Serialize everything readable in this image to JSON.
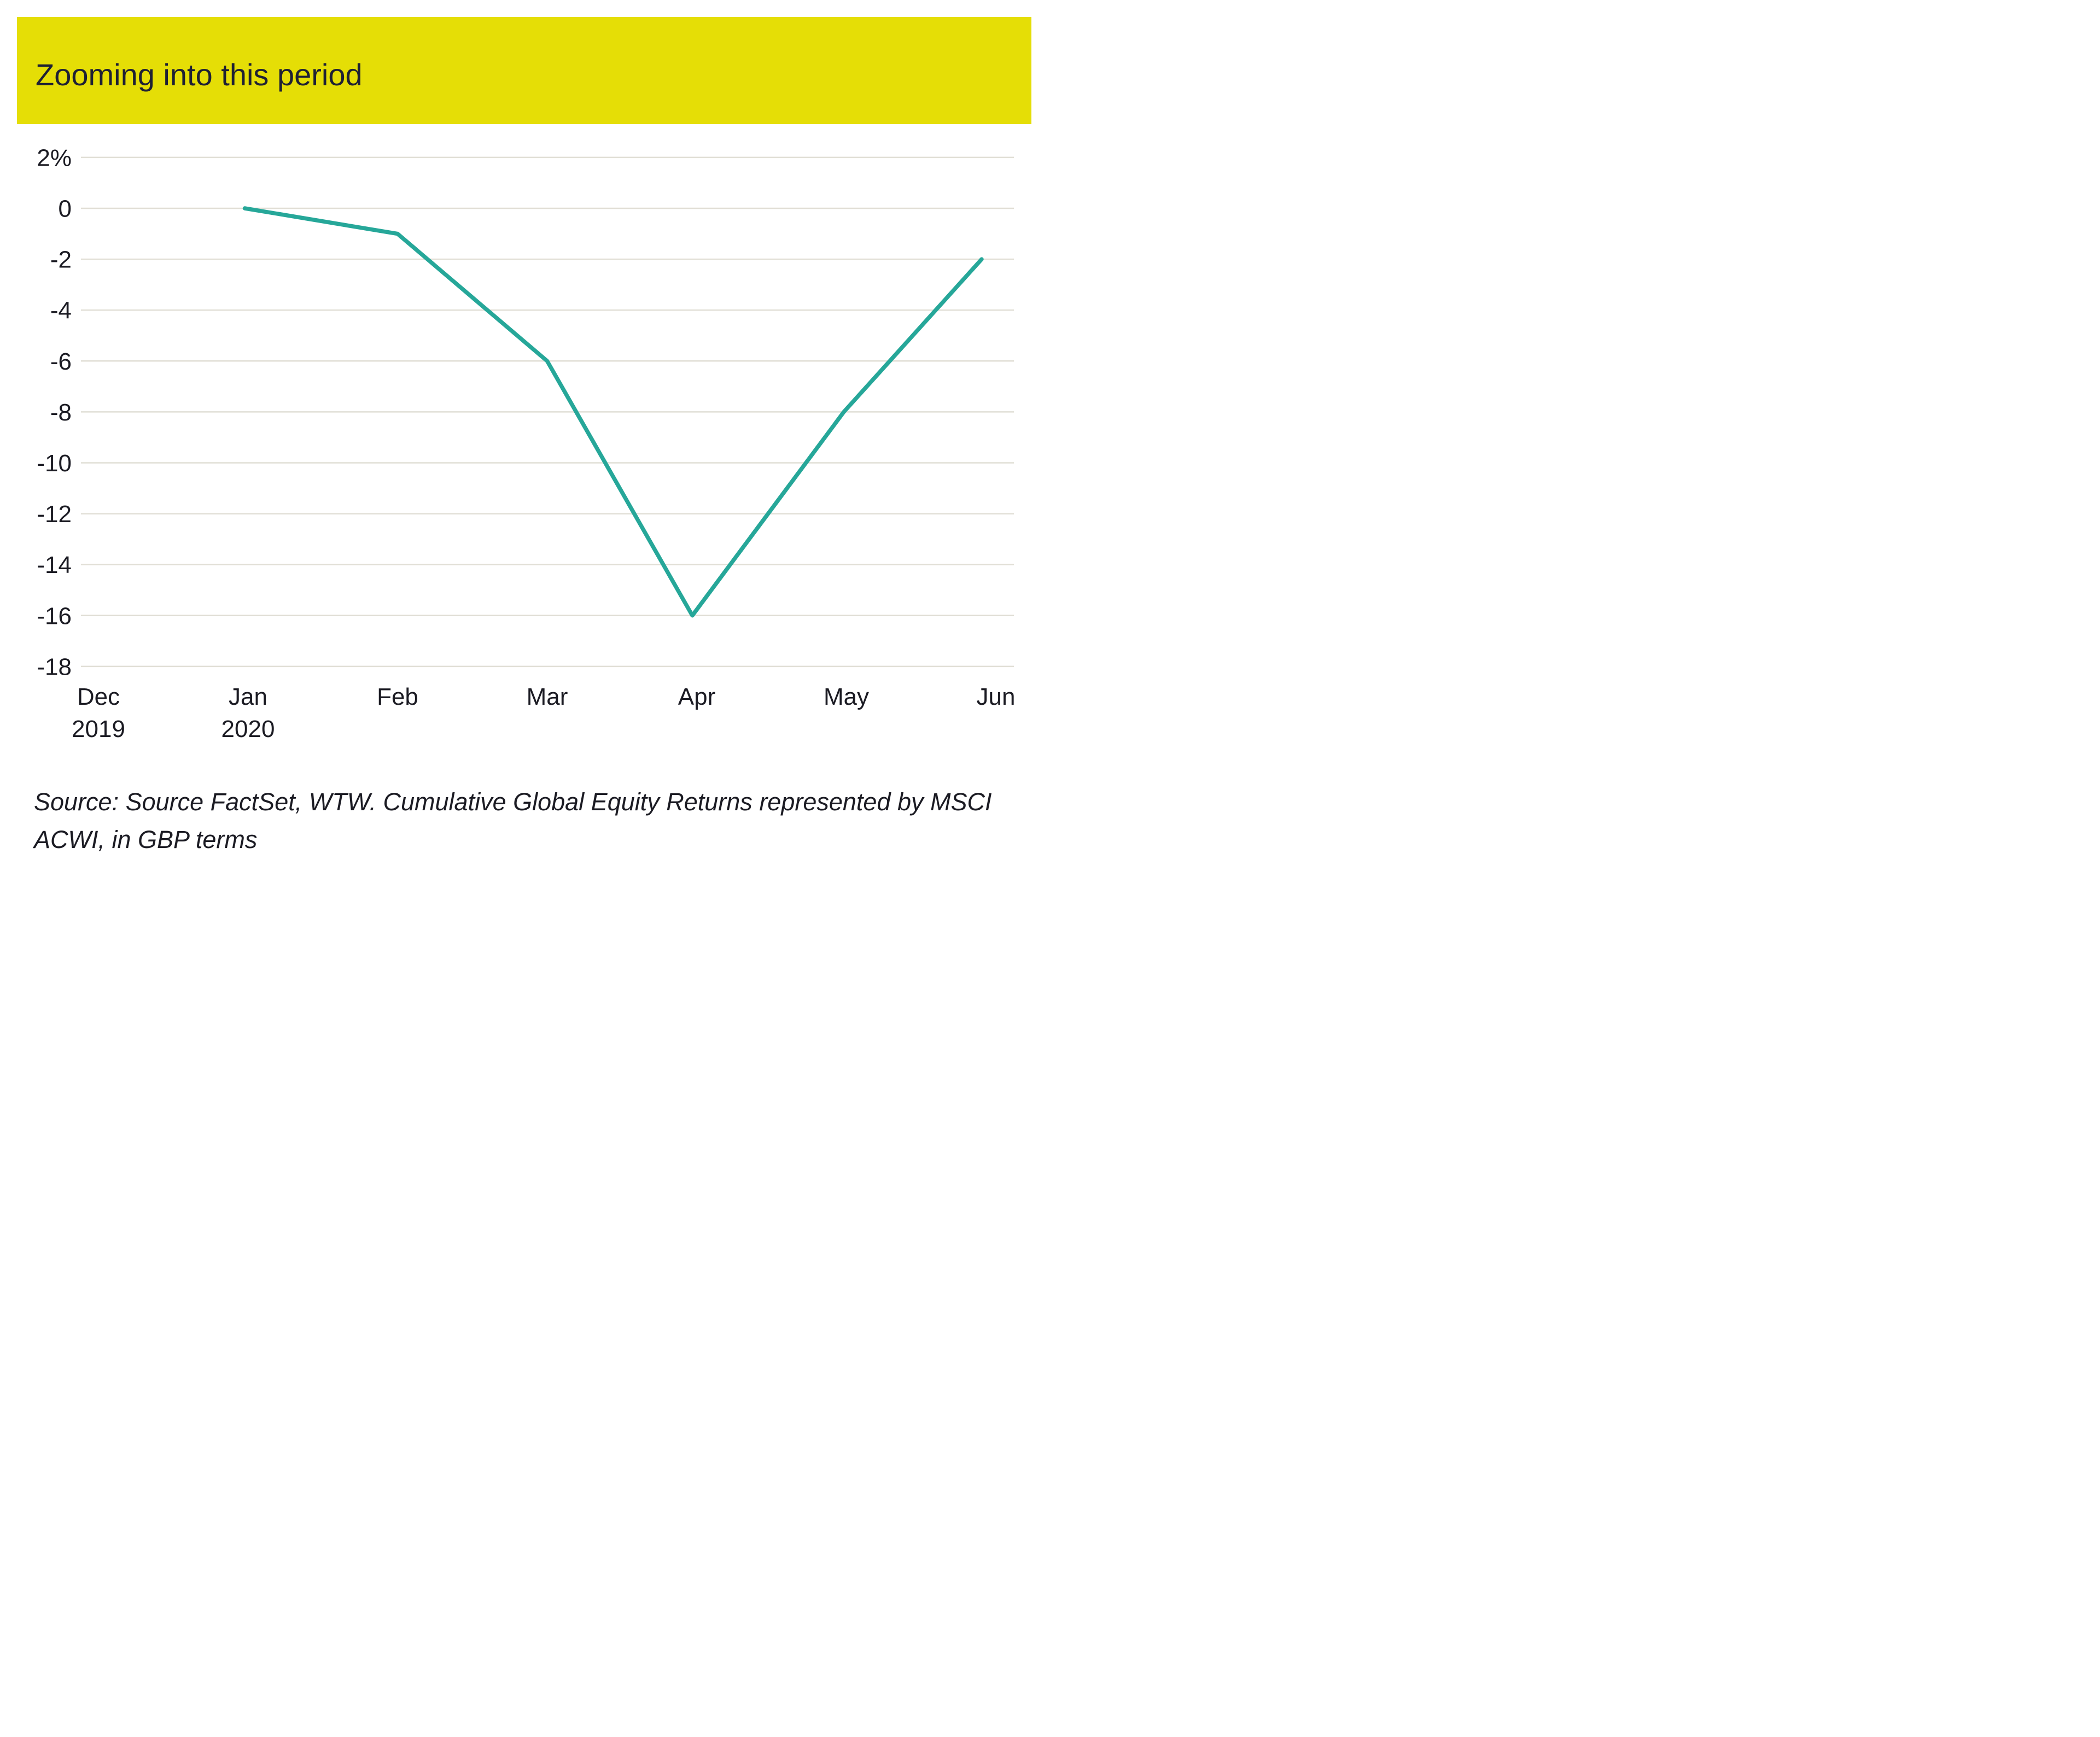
{
  "header": {
    "title": "Zooming into this period"
  },
  "chart_data": {
    "type": "line",
    "title": "Zooming into this period",
    "ylabel": "%",
    "xlabel": "",
    "ylim": [
      -18,
      2
    ],
    "grid": "horizontal",
    "legend_position": "none",
    "line_color": "#26a799",
    "gridline_color": "#e1dfd6",
    "accent_yellow": "#e5de06",
    "yticks": [
      {
        "label": "2%",
        "value": 2
      },
      {
        "label": "0",
        "value": 0
      },
      {
        "label": "-2",
        "value": -2
      },
      {
        "label": "-4",
        "value": -4
      },
      {
        "label": "-6",
        "value": -6
      },
      {
        "label": "-8",
        "value": -8
      },
      {
        "label": "-10",
        "value": -10
      },
      {
        "label": "-12",
        "value": -12
      },
      {
        "label": "-14",
        "value": -14
      },
      {
        "label": "-16",
        "value": -16
      },
      {
        "label": "-18",
        "value": -18
      }
    ],
    "xticks": [
      {
        "label": "Dec",
        "sub": "2019"
      },
      {
        "label": "Jan",
        "sub": "2020"
      },
      {
        "label": "Feb",
        "sub": ""
      },
      {
        "label": "Mar",
        "sub": ""
      },
      {
        "label": "Apr",
        "sub": ""
      },
      {
        "label": "May",
        "sub": ""
      },
      {
        "label": "Jun",
        "sub": ""
      }
    ],
    "series": [
      {
        "name": "Cumulative Global Equity Returns (MSCI ACWI, GBP)",
        "x": [
          "Jan 2020",
          "Feb",
          "Mar",
          "Apr",
          "May",
          "Jun"
        ],
        "values": [
          0,
          -1,
          -6,
          -16,
          -8,
          -2
        ]
      }
    ]
  },
  "source": {
    "line1": "Source: Source FactSet, WTW. Cumulative Global Equity Returns represented by MSCI",
    "line2": "ACWI, in GBP terms"
  }
}
